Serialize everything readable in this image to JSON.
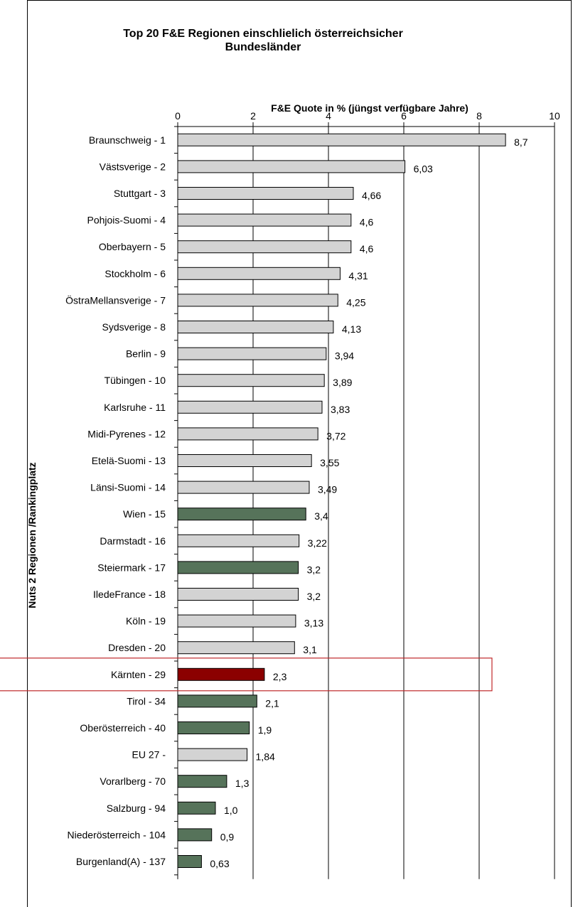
{
  "chart_data": {
    "type": "bar",
    "orientation": "horizontal",
    "title": "Top 20 F&E Regionen einschlielich österreichsicher Bundesländer",
    "xlabel": "F&E Quote in % (jüngst verfügbare Jahre)",
    "ylabel": "Nuts 2 Regionen /Rankingplatz",
    "xlim": [
      0,
      10
    ],
    "xticks": [
      "0",
      "2",
      "4",
      "6",
      "8",
      "10"
    ],
    "grid": "vertical",
    "colors": {
      "other": "#d3d3d3",
      "austria": "#56735a",
      "highlight": "#8b0000",
      "highlight_box": "#c0282a"
    },
    "highlighted_category": "Kärnten - 29",
    "categories": [
      "Braunschweig - 1",
      "Västsverige - 2",
      "Stuttgart - 3",
      "Pohjois-Suomi - 4",
      "Oberbayern - 5",
      "Stockholm - 6",
      "ÖstraMellansverige - 7",
      "Sydsverige - 8",
      "Berlin - 9",
      "Tübingen - 10",
      "Karlsruhe - 11",
      "Midi-Pyrenes - 12",
      "Etelä-Suomi - 13",
      "Länsi-Suomi - 14",
      "Wien - 15",
      "Darmstadt - 16",
      "Steiermark - 17",
      "IledeFrance - 18",
      "Köln - 19",
      "Dresden - 20",
      "Kärnten - 29",
      "Tirol - 34",
      "Oberösterreich - 40",
      "EU 27 -",
      "Vorarlberg - 70",
      "Salzburg - 94",
      "Niederösterreich - 104",
      "Burgenland(A) - 137"
    ],
    "values": [
      8.7,
      6.03,
      4.66,
      4.6,
      4.6,
      4.31,
      4.25,
      4.13,
      3.94,
      3.89,
      3.83,
      3.72,
      3.55,
      3.49,
      3.4,
      3.22,
      3.2,
      3.2,
      3.13,
      3.1,
      2.3,
      2.1,
      1.9,
      1.84,
      1.3,
      1.0,
      0.9,
      0.63
    ],
    "value_labels": [
      "8,7",
      "6,03",
      "4,66",
      "4,6",
      "4,6",
      "4,31",
      "4,25",
      "4,13",
      "3,94",
      "3,89",
      "3,83",
      "3,72",
      "3,55",
      "3,49",
      "3,4",
      "3,22",
      "3,2",
      "3,2",
      "3,13",
      "3,1",
      "2,3",
      "2,1",
      "1,9",
      "1,84",
      "1,3",
      "1,0",
      "0,9",
      "0,63"
    ],
    "groups": [
      "other",
      "other",
      "other",
      "other",
      "other",
      "other",
      "other",
      "other",
      "other",
      "other",
      "other",
      "other",
      "other",
      "other",
      "austria",
      "other",
      "austria",
      "other",
      "other",
      "other",
      "highlight",
      "austria",
      "austria",
      "other",
      "austria",
      "austria",
      "austria",
      "austria"
    ]
  }
}
